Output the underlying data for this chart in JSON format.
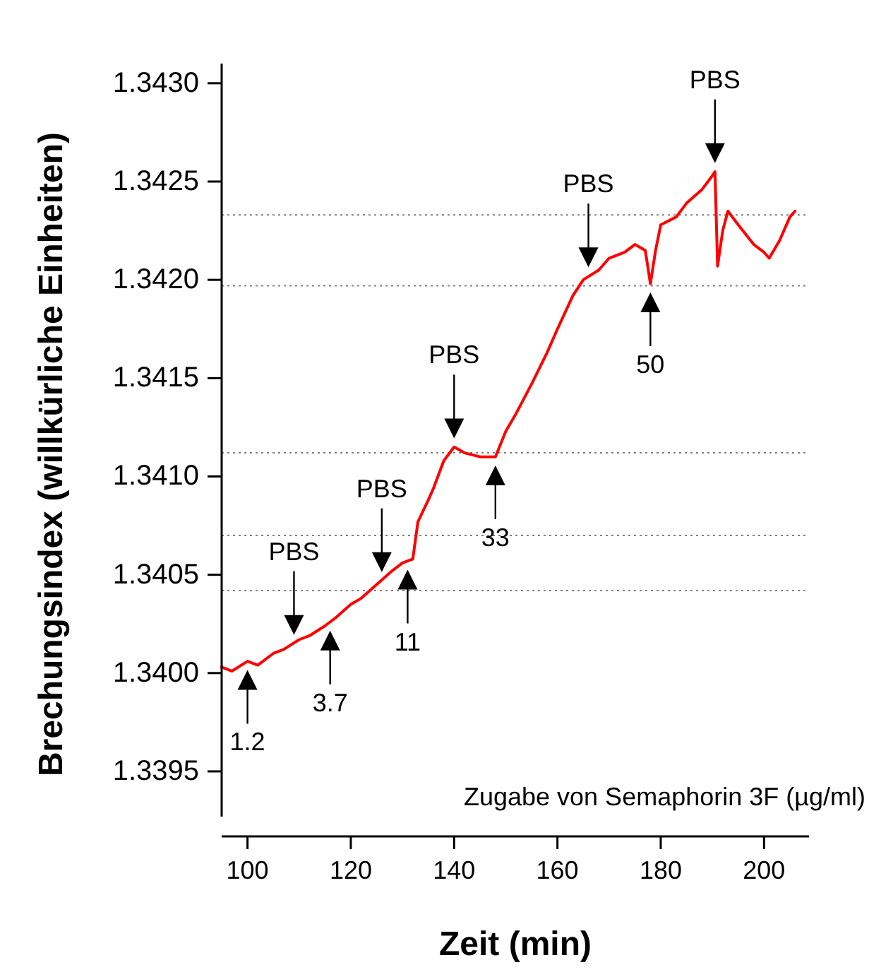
{
  "chart_data": {
    "type": "line",
    "xlabel": "Zeit (min)",
    "ylabel": "Brechungsindex (willkürliche Einheiten)",
    "xlim": [
      95,
      208.7
    ],
    "xticks": [
      100,
      120,
      140,
      160,
      180,
      200
    ],
    "ylim": [
      1.33927,
      1.3431
    ],
    "yticks": [
      {
        "value": 1.3395,
        "label": "1.3395"
      },
      {
        "value": 1.34,
        "label": "1.3400"
      },
      {
        "value": 1.3405,
        "label": "1.3405"
      },
      {
        "value": 1.341,
        "label": "1.3410"
      },
      {
        "value": 1.3415,
        "label": "1.3415"
      },
      {
        "value": 1.342,
        "label": "1.3420"
      },
      {
        "value": 1.3425,
        "label": "1.3425"
      },
      {
        "value": 1.343,
        "label": "1.3430"
      }
    ],
    "series": [
      {
        "color": "#ff0000",
        "x": [
          95,
          97,
          100,
          102,
          105,
          107,
          110,
          112,
          115,
          117,
          120,
          122,
          125,
          128,
          130,
          132,
          133,
          135,
          136,
          138,
          140,
          142,
          145,
          148,
          150,
          152,
          155,
          158,
          160,
          163,
          165,
          168,
          170,
          173,
          175,
          177,
          178,
          179,
          180,
          183,
          185,
          188,
          190,
          190.5,
          191,
          192,
          193,
          195,
          198,
          200,
          201,
          203,
          205,
          206
        ],
        "values": [
          1.34003,
          1.34001,
          1.34006,
          1.34004,
          1.3401,
          1.34012,
          1.34017,
          1.34019,
          1.34024,
          1.34028,
          1.34035,
          1.34038,
          1.34045,
          1.34052,
          1.34056,
          1.34058,
          1.34077,
          1.34088,
          1.34094,
          1.34108,
          1.34115,
          1.34112,
          1.3411,
          1.3411,
          1.34123,
          1.34132,
          1.34147,
          1.34163,
          1.34175,
          1.34192,
          1.342,
          1.34205,
          1.34211,
          1.34214,
          1.34218,
          1.34215,
          1.34198,
          1.34215,
          1.34228,
          1.34232,
          1.34239,
          1.34246,
          1.34253,
          1.34255,
          1.34207,
          1.34225,
          1.34235,
          1.34228,
          1.34218,
          1.34214,
          1.34211,
          1.3422,
          1.34232,
          1.34235
        ]
      }
    ],
    "ref_lines": [
      {
        "axis": "y",
        "value": 1.34233,
        "color": "#808080",
        "line_style": "dotted"
      },
      {
        "axis": "y",
        "value": 1.34197,
        "color": "#808080",
        "line_style": "dotted"
      },
      {
        "axis": "y",
        "value": 1.34112,
        "color": "#808080",
        "line_style": "dotted"
      },
      {
        "axis": "y",
        "value": 1.3407,
        "color": "#808080",
        "line_style": "dotted"
      },
      {
        "axis": "y",
        "value": 1.34042,
        "color": "#808080",
        "line_style": "dotted"
      }
    ],
    "annotations": [
      {
        "text": "PBS",
        "x": 109,
        "y": 1.34018
      },
      {
        "text": "PBS",
        "x": 126,
        "y": 1.3405
      },
      {
        "text": "PBS",
        "x": 140,
        "y": 1.34118
      },
      {
        "text": "PBS",
        "x": 166,
        "y": 1.34205
      },
      {
        "text": "PBS",
        "x": 190.5,
        "y": 1.34258
      },
      {
        "text": "1.2",
        "x": 100,
        "y": 1.34003
      },
      {
        "text": "3.7",
        "x": 116,
        "y": 1.34023
      },
      {
        "text": "11",
        "x": 131,
        "y": 1.34054
      },
      {
        "text": "33",
        "x": 148,
        "y": 1.34107
      },
      {
        "text": "50",
        "x": 178,
        "y": 1.34195
      },
      "Zugabe von Semaphorin 3F (µg/ml)"
    ],
    "grid": false,
    "marker": "none",
    "line_style": "solid"
  }
}
